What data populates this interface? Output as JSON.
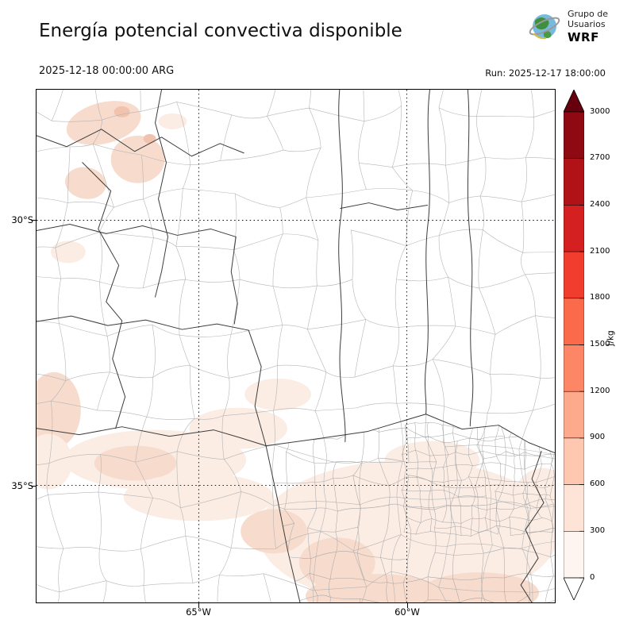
{
  "header": {
    "title": "Energía potencial convectiva disponible",
    "valid_time": "2025-12-18 00:00:00 ARG",
    "run_label": "Run: 2025-12-17 18:00:00",
    "logo": {
      "line1": "Grupo de",
      "line2": "Usuarios",
      "line3": "WRF"
    }
  },
  "map_axes": {
    "lat_labels": [
      "30°S",
      "35°S"
    ],
    "lon_labels": [
      "65°W",
      "60°W"
    ]
  },
  "colorbar": {
    "unit": "J/kg",
    "tick_labels_top_to_bottom": [
      "3000",
      "2700",
      "2400",
      "2100",
      "1800",
      "1500",
      "1200",
      "900",
      "600",
      "300",
      "0"
    ],
    "segment_colors_top_to_bottom": [
      "#8e0912",
      "#b11218",
      "#d42020",
      "#f03d2d",
      "#fb6a4a",
      "#fc8666",
      "#fca98c",
      "#fdc7b0",
      "#fee3d7",
      "#fff5f0"
    ],
    "over_color": "#67000d",
    "under_color": "#ffffff"
  },
  "chart_data": {
    "type": "heatmap",
    "title": "Energía potencial convectiva disponible",
    "units": "J/kg",
    "scale_ticks": [
      0,
      300,
      600,
      900,
      1200,
      1500,
      1800,
      2100,
      2400,
      2700,
      3000
    ],
    "lat_tick_labels": [
      "30°S",
      "35°S"
    ],
    "lon_tick_labels": [
      "65°W",
      "60°W"
    ],
    "valid_time": "2025-12-18 00:00:00 ARG",
    "model_run": "2025-12-17 18:00:00",
    "summary": "CAPE near 0 J/kg over most of the domain; scattered patches of ~300-600 J/kg in the northwest corner, a faint band across the center-south, and broader pale shading (~300 J/kg) over the southeast / Buenos Aires region."
  }
}
